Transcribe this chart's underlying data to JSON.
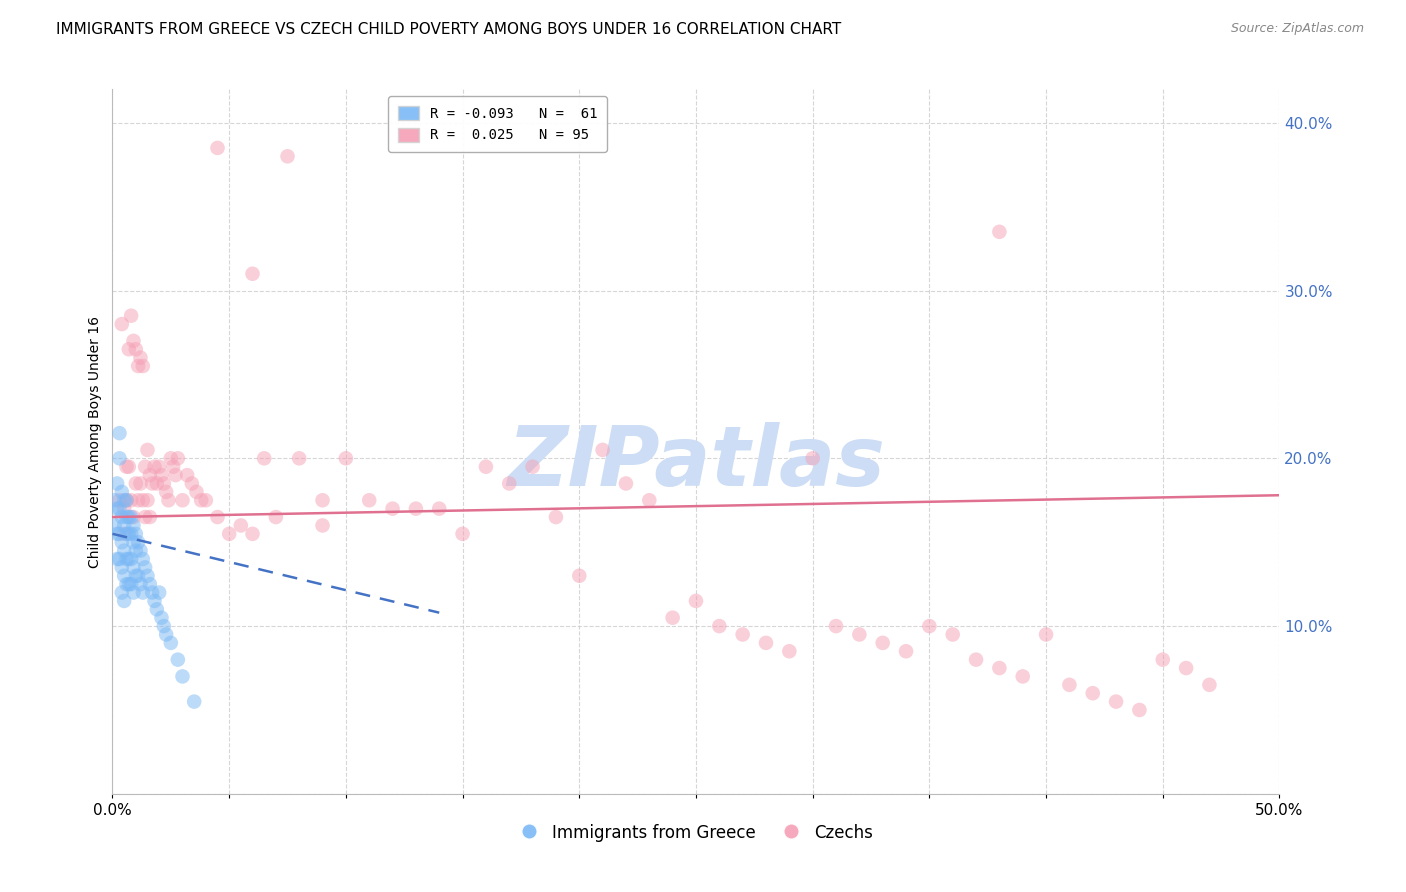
{
  "title": "IMMIGRANTS FROM GREECE VS CZECH CHILD POVERTY AMONG BOYS UNDER 16 CORRELATION CHART",
  "source": "Source: ZipAtlas.com",
  "ylabel": "Child Poverty Among Boys Under 16",
  "xlim": [
    0,
    0.5
  ],
  "ylim": [
    0,
    0.42
  ],
  "legend_entries": [
    {
      "label": "R = -0.093   N =  61",
      "color": "#a8c8f0"
    },
    {
      "label": "R =  0.025   N = 95",
      "color": "#f4a0b0"
    }
  ],
  "blue_scatter_x": [
    0.001,
    0.001,
    0.002,
    0.002,
    0.002,
    0.002,
    0.003,
    0.003,
    0.003,
    0.003,
    0.003,
    0.004,
    0.004,
    0.004,
    0.004,
    0.004,
    0.005,
    0.005,
    0.005,
    0.005,
    0.005,
    0.006,
    0.006,
    0.006,
    0.006,
    0.006,
    0.007,
    0.007,
    0.007,
    0.007,
    0.008,
    0.008,
    0.008,
    0.008,
    0.009,
    0.009,
    0.009,
    0.009,
    0.01,
    0.01,
    0.01,
    0.011,
    0.011,
    0.012,
    0.012,
    0.013,
    0.013,
    0.014,
    0.015,
    0.016,
    0.017,
    0.018,
    0.019,
    0.02,
    0.021,
    0.022,
    0.023,
    0.025,
    0.028,
    0.03,
    0.035
  ],
  "blue_scatter_y": [
    0.175,
    0.16,
    0.185,
    0.17,
    0.155,
    0.14,
    0.215,
    0.2,
    0.17,
    0.155,
    0.14,
    0.18,
    0.165,
    0.15,
    0.135,
    0.12,
    0.175,
    0.16,
    0.145,
    0.13,
    0.115,
    0.175,
    0.165,
    0.155,
    0.14,
    0.125,
    0.165,
    0.155,
    0.14,
    0.125,
    0.165,
    0.155,
    0.14,
    0.125,
    0.16,
    0.15,
    0.135,
    0.12,
    0.155,
    0.145,
    0.13,
    0.15,
    0.13,
    0.145,
    0.125,
    0.14,
    0.12,
    0.135,
    0.13,
    0.125,
    0.12,
    0.115,
    0.11,
    0.12,
    0.105,
    0.1,
    0.095,
    0.09,
    0.08,
    0.07,
    0.055
  ],
  "pink_scatter_x": [
    0.003,
    0.004,
    0.005,
    0.005,
    0.006,
    0.006,
    0.007,
    0.007,
    0.008,
    0.008,
    0.009,
    0.009,
    0.01,
    0.01,
    0.011,
    0.011,
    0.012,
    0.012,
    0.013,
    0.013,
    0.014,
    0.014,
    0.015,
    0.015,
    0.016,
    0.016,
    0.017,
    0.018,
    0.019,
    0.02,
    0.021,
    0.022,
    0.023,
    0.024,
    0.025,
    0.026,
    0.027,
    0.028,
    0.03,
    0.032,
    0.034,
    0.036,
    0.038,
    0.04,
    0.045,
    0.05,
    0.055,
    0.06,
    0.065,
    0.07,
    0.08,
    0.09,
    0.1,
    0.11,
    0.12,
    0.13,
    0.14,
    0.15,
    0.16,
    0.17,
    0.18,
    0.19,
    0.2,
    0.21,
    0.22,
    0.23,
    0.24,
    0.25,
    0.26,
    0.27,
    0.28,
    0.29,
    0.3,
    0.31,
    0.32,
    0.33,
    0.34,
    0.35,
    0.36,
    0.37,
    0.38,
    0.39,
    0.4,
    0.41,
    0.42,
    0.43,
    0.44,
    0.45,
    0.46,
    0.47,
    0.045,
    0.06,
    0.075,
    0.09,
    0.38
  ],
  "pink_scatter_y": [
    0.175,
    0.28,
    0.17,
    0.155,
    0.195,
    0.175,
    0.265,
    0.195,
    0.285,
    0.175,
    0.27,
    0.165,
    0.265,
    0.185,
    0.255,
    0.175,
    0.26,
    0.185,
    0.255,
    0.175,
    0.195,
    0.165,
    0.205,
    0.175,
    0.19,
    0.165,
    0.185,
    0.195,
    0.185,
    0.195,
    0.19,
    0.185,
    0.18,
    0.175,
    0.2,
    0.195,
    0.19,
    0.2,
    0.175,
    0.19,
    0.185,
    0.18,
    0.175,
    0.175,
    0.165,
    0.155,
    0.16,
    0.155,
    0.2,
    0.165,
    0.2,
    0.175,
    0.2,
    0.175,
    0.17,
    0.17,
    0.17,
    0.155,
    0.195,
    0.185,
    0.195,
    0.165,
    0.13,
    0.205,
    0.185,
    0.175,
    0.105,
    0.115,
    0.1,
    0.095,
    0.09,
    0.085,
    0.2,
    0.1,
    0.095,
    0.09,
    0.085,
    0.1,
    0.095,
    0.08,
    0.075,
    0.07,
    0.095,
    0.065,
    0.06,
    0.055,
    0.05,
    0.08,
    0.075,
    0.065,
    0.385,
    0.31,
    0.38,
    0.16,
    0.335
  ],
  "blue_line_x": [
    0.0,
    0.14
  ],
  "blue_line_y_start": 0.155,
  "blue_line_y_end": 0.108,
  "pink_line_x": [
    0.0,
    0.5
  ],
  "pink_line_y_start": 0.165,
  "pink_line_y_end": 0.178,
  "scatter_size": 110,
  "scatter_alpha": 0.5,
  "blue_color": "#7ab8f5",
  "pink_color": "#f5a0b5",
  "blue_line_color": "#4472c4",
  "pink_line_color": "#e07090",
  "grid_color": "#cccccc",
  "background_color": "#ffffff",
  "title_fontsize": 11,
  "axis_label_fontsize": 10,
  "tick_fontsize": 11,
  "legend_fontsize": 10,
  "source_fontsize": 9,
  "watermark_text": "ZIPatlas",
  "watermark_color": "#ccddf5",
  "watermark_fontsize": 60,
  "right_ytick_color": "#4472c4"
}
